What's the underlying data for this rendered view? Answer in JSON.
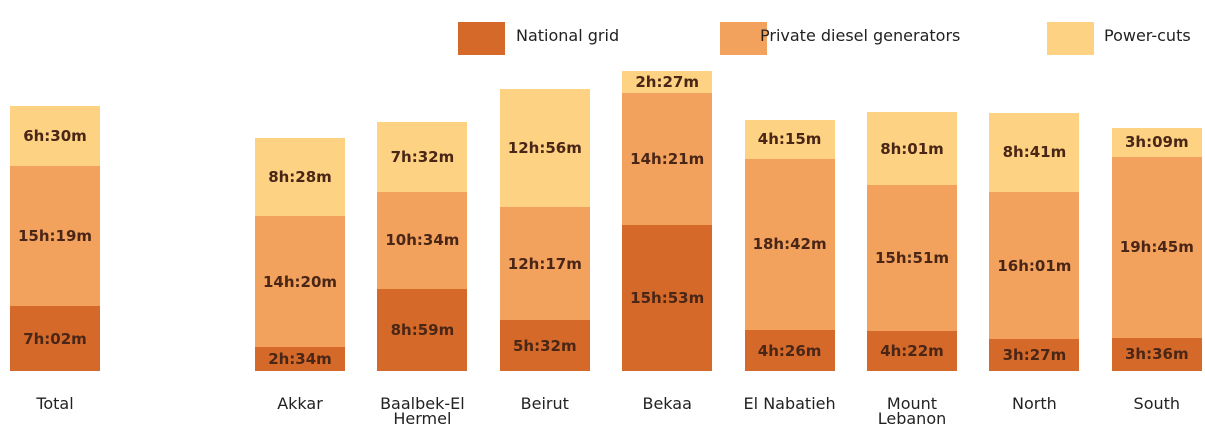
{
  "chart_data": {
    "type": "bar",
    "stacked": true,
    "categories": [
      "Total",
      "Akkar",
      "Baalbek-El Hermel",
      "Beirut",
      "Bekaa",
      "El Nabatieh",
      "Mount Lebanon",
      "North",
      "South"
    ],
    "series": [
      {
        "name": "National grid",
        "color": "#d4692a",
        "values": [
          422,
          154,
          539,
          332,
          953,
          266,
          262,
          207,
          216
        ],
        "value_labels": [
          "7h:02m",
          "2h:34m",
          "8h:59m",
          "5h:32m",
          "15h:53m",
          "4h:26m",
          "4h:22m",
          "3h:27m",
          "3h:36m"
        ]
      },
      {
        "name": "Private diesel generators",
        "color": "#f3a25e",
        "values": [
          919,
          860,
          634,
          737,
          861,
          1122,
          951,
          961,
          1185
        ],
        "value_labels": [
          "15h:19m",
          "14h:20m",
          "10h:34m",
          "12h:17m",
          "14h:21m",
          "18h:42m",
          "15h:51m",
          "16h:01m",
          "19h:45m"
        ]
      },
      {
        "name": "Power-cuts",
        "color": "#fdd283",
        "values": [
          390,
          508,
          452,
          776,
          147,
          255,
          481,
          521,
          189
        ],
        "value_labels": [
          "6h:30m",
          "8h:28m",
          "7h:32m",
          "12h:56m",
          "2h:27m",
          "4h:15m",
          "8h:01m",
          "8h:41m",
          "3h:09m"
        ]
      }
    ]
  }
}
